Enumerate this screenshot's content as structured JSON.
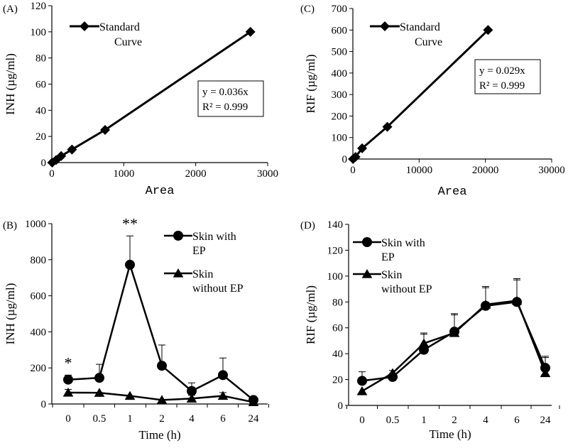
{
  "chart_data": [
    {
      "id": "A",
      "type": "scatter",
      "panel_label": "(A)",
      "xlabel": "Area",
      "ylabel": "INH (µg/ml)",
      "xlim": [
        0,
        3000
      ],
      "ylim": [
        0,
        120
      ],
      "xticks": [
        0,
        1000,
        2000,
        3000
      ],
      "yticks": [
        0,
        20,
        40,
        60,
        80,
        100,
        120
      ],
      "legend": [
        "Standard",
        "Curve"
      ],
      "equation": [
        "y = 0.036x",
        "R² = 0.999"
      ],
      "x": [
        5,
        60,
        130,
        280,
        740,
        2760
      ],
      "y": [
        0,
        2,
        5,
        10,
        25,
        100
      ],
      "fit": {
        "slope": 0.036,
        "r2": 0.999
      }
    },
    {
      "id": "C",
      "type": "scatter",
      "panel_label": "(C)",
      "xlabel": "Area",
      "ylabel": "RIF (µg/ml)",
      "xlim": [
        0,
        30000
      ],
      "ylim": [
        0,
        700
      ],
      "xticks": [
        0,
        10000,
        20000,
        30000
      ],
      "yticks": [
        0,
        100,
        200,
        300,
        400,
        500,
        600,
        700
      ],
      "legend": [
        "Standard",
        "Curve"
      ],
      "equation": [
        "y = 0.029x",
        "R² = 0.999"
      ],
      "x": [
        20,
        400,
        1400,
        5200,
        20400
      ],
      "y": [
        0,
        10,
        50,
        150,
        600
      ],
      "fit": {
        "slope": 0.029,
        "r2": 0.999
      }
    },
    {
      "id": "B",
      "type": "line",
      "panel_label": "(B)",
      "xlabel": "Time (h)",
      "ylabel": "INH (µg/ml)",
      "categories": [
        "0",
        "0.5",
        "1",
        "2",
        "4",
        "6",
        "24"
      ],
      "ylim": [
        0,
        1000
      ],
      "yticks": [
        0,
        200,
        400,
        600,
        800,
        1000
      ],
      "series": [
        {
          "name": "Skin with EP",
          "legend": [
            "Skin with",
            "EP"
          ],
          "marker": "circle",
          "values": [
            135,
            145,
            772,
            212,
            72,
            160,
            22
          ],
          "errors": [
            25,
            75,
            160,
            115,
            45,
            95,
            12
          ]
        },
        {
          "name": "Skin without EP",
          "legend": [
            "Skin",
            "without EP"
          ],
          "marker": "triangle",
          "values": [
            63,
            62,
            45,
            22,
            30,
            45,
            10
          ],
          "errors": [
            18,
            0,
            0,
            0,
            18,
            18,
            0
          ]
        }
      ],
      "annotations": [
        {
          "category": "0",
          "text": "*"
        },
        {
          "category": "1",
          "text": "**"
        }
      ]
    },
    {
      "id": "D",
      "type": "line",
      "panel_label": "(D)",
      "xlabel": "Time (h)",
      "ylabel": "RIF (µg/ml)",
      "categories": [
        "0",
        "0.5",
        "1",
        "2",
        "4",
        "6",
        "24"
      ],
      "ylim": [
        0,
        140
      ],
      "yticks": [
        0,
        20,
        40,
        60,
        80,
        100,
        120,
        140
      ],
      "series": [
        {
          "name": "Skin with EP",
          "legend": [
            "Skin with",
            "EP"
          ],
          "marker": "circle",
          "values": [
            19,
            22,
            43,
            57,
            77,
            80,
            29
          ],
          "errors": [
            7,
            5,
            12,
            14,
            14,
            17,
            8
          ]
        },
        {
          "name": "Skin without EP",
          "legend": [
            "Skin",
            "without EP"
          ],
          "marker": "triangle",
          "values": [
            11,
            25,
            48,
            56,
            78,
            81,
            25
          ],
          "errors": [
            0,
            0,
            8,
            14,
            14,
            17,
            13
          ]
        }
      ]
    }
  ]
}
